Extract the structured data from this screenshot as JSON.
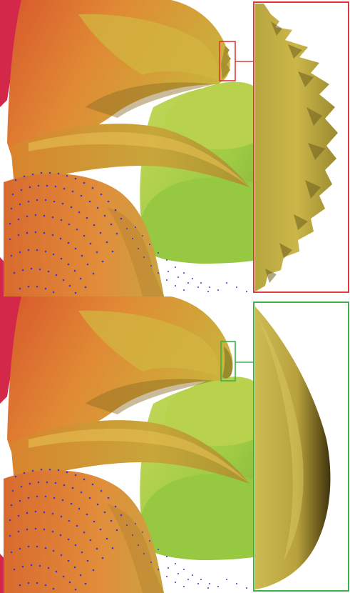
{
  "figure": {
    "panels": [
      {
        "id": "top",
        "inset_frame_color": "#e0383a",
        "surface_quality": "jagged"
      },
      {
        "id": "bottom",
        "inset_frame_color": "#3cb04a",
        "surface_quality": "smooth"
      }
    ],
    "colors": {
      "surface_orange": "#e07a2c",
      "surface_yellow": "#c9b53a",
      "surface_green": "#a6d24a",
      "accent_red": "#d4284a",
      "dot_blue": "#3a3ad0",
      "background": "#ffffff"
    }
  }
}
